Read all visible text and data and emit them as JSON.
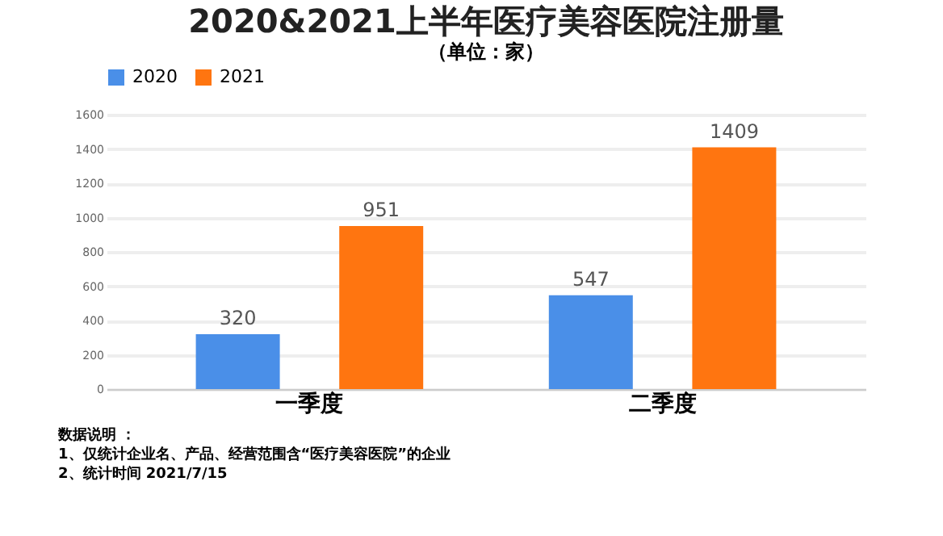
{
  "chart_data": {
    "type": "bar",
    "title": "2020&2021上半年医疗美容医院注册量",
    "subtitle": "（单位：家）",
    "categories": [
      "一季度",
      "二季度"
    ],
    "series": [
      {
        "name": "2020",
        "color": "#4a8fe8",
        "values": [
          320,
          547
        ]
      },
      {
        "name": "2021",
        "color": "#ff7510",
        "values": [
          951,
          1409
        ]
      }
    ],
    "ylim": [
      0,
      1600
    ],
    "yticks": [
      0,
      200,
      400,
      600,
      800,
      1000,
      1200,
      1400,
      1600
    ],
    "grid": "y",
    "legend": "top",
    "data_labels": true,
    "annotations": [
      "数据说明 ：",
      "1、仅统计企业名、产品、经营范围含“医疗美容医院”的企业",
      "2、统计时间 2021/7/15"
    ]
  }
}
